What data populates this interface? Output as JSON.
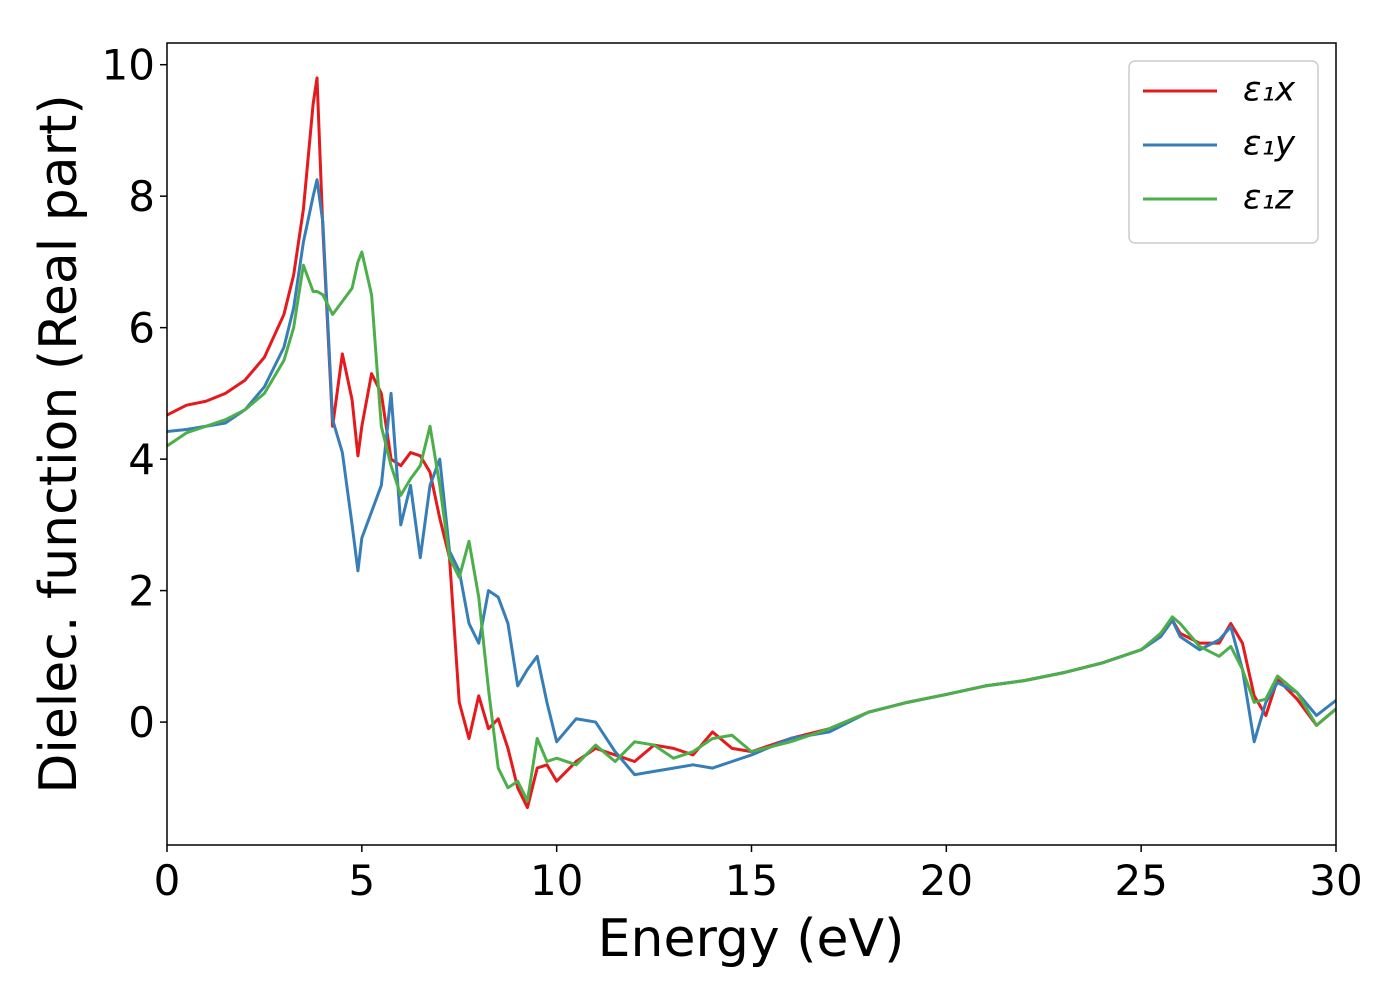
{
  "chart_data": {
    "type": "line",
    "xlabel": "Energy (eV)",
    "ylabel": "Dielec. function (Real part)",
    "xlim": [
      0,
      30
    ],
    "ylim": [
      -1.87,
      10.33
    ],
    "xticks": [
      0,
      5,
      10,
      15,
      20,
      25,
      30
    ],
    "yticks": [
      0,
      2,
      4,
      6,
      8,
      10
    ],
    "legend": "upper right",
    "grid": false,
    "x": [
      0,
      0.5,
      1,
      1.5,
      2,
      2.5,
      3,
      3.25,
      3.5,
      3.75,
      3.85,
      4,
      4.25,
      4.5,
      4.75,
      4.9,
      5,
      5.25,
      5.5,
      5.75,
      6,
      6.25,
      6.5,
      6.75,
      7,
      7.25,
      7.5,
      7.75,
      8,
      8.25,
      8.5,
      8.75,
      9,
      9.25,
      9.5,
      9.75,
      10,
      10.5,
      11,
      11.5,
      12,
      12.5,
      13,
      13.5,
      14,
      14.5,
      15,
      16,
      17,
      18,
      19,
      20,
      21,
      22,
      23,
      24,
      25,
      25.5,
      25.8,
      26,
      26.5,
      27,
      27.3,
      27.6,
      27.9,
      28.2,
      28.5,
      29,
      29.5,
      30
    ],
    "series": [
      {
        "name": "ε₁x",
        "color": "#e41a1c",
        "values": [
          4.67,
          4.82,
          4.88,
          5.0,
          5.2,
          5.55,
          6.2,
          6.8,
          7.8,
          9.4,
          9.8,
          7.5,
          4.5,
          5.6,
          4.9,
          4.05,
          4.5,
          5.3,
          5.0,
          4.0,
          3.9,
          4.1,
          4.05,
          3.8,
          3.1,
          2.5,
          0.3,
          -0.25,
          0.4,
          -0.1,
          0.05,
          -0.4,
          -1.0,
          -1.3,
          -0.7,
          -0.65,
          -0.9,
          -0.6,
          -0.4,
          -0.5,
          -0.6,
          -0.35,
          -0.4,
          -0.5,
          -0.15,
          -0.4,
          -0.45,
          -0.25,
          -0.1,
          0.15,
          0.3,
          0.42,
          0.55,
          0.63,
          0.75,
          0.9,
          1.1,
          1.3,
          1.55,
          1.35,
          1.2,
          1.2,
          1.5,
          1.2,
          0.4,
          0.1,
          0.65,
          0.35,
          -0.05,
          0.2
        ]
      },
      {
        "name": "ε₁y",
        "color": "#377eb8",
        "values": [
          4.42,
          4.45,
          4.5,
          4.55,
          4.75,
          5.1,
          5.7,
          6.3,
          7.3,
          8.0,
          8.25,
          7.6,
          4.6,
          4.1,
          3.0,
          2.3,
          2.8,
          3.2,
          3.6,
          5.0,
          3.0,
          3.6,
          2.5,
          3.6,
          4.0,
          2.6,
          2.3,
          1.5,
          1.2,
          2.0,
          1.9,
          1.5,
          0.55,
          0.8,
          1.0,
          0.3,
          -0.3,
          0.05,
          0.0,
          -0.45,
          -0.8,
          -0.75,
          -0.7,
          -0.65,
          -0.7,
          -0.6,
          -0.5,
          -0.25,
          -0.15,
          0.15,
          0.3,
          0.42,
          0.55,
          0.63,
          0.75,
          0.9,
          1.1,
          1.3,
          1.55,
          1.3,
          1.1,
          1.25,
          1.45,
          0.8,
          -0.3,
          0.3,
          0.6,
          0.45,
          0.1,
          0.33
        ]
      },
      {
        "name": "ε₁z",
        "color": "#4daf4a",
        "values": [
          4.2,
          4.4,
          4.5,
          4.6,
          4.75,
          5.0,
          5.5,
          6.0,
          6.95,
          6.55,
          6.55,
          6.5,
          6.2,
          6.4,
          6.6,
          7.0,
          7.15,
          6.5,
          4.5,
          3.9,
          3.45,
          3.7,
          3.9,
          4.5,
          3.6,
          2.5,
          2.2,
          2.75,
          1.9,
          0.5,
          -0.7,
          -1.0,
          -0.9,
          -1.2,
          -0.25,
          -0.6,
          -0.55,
          -0.65,
          -0.35,
          -0.6,
          -0.3,
          -0.35,
          -0.55,
          -0.45,
          -0.25,
          -0.2,
          -0.45,
          -0.3,
          -0.1,
          0.15,
          0.3,
          0.42,
          0.55,
          0.63,
          0.75,
          0.9,
          1.1,
          1.35,
          1.6,
          1.5,
          1.15,
          1.0,
          1.15,
          0.8,
          0.3,
          0.35,
          0.7,
          0.45,
          -0.05,
          0.2
        ]
      }
    ]
  }
}
